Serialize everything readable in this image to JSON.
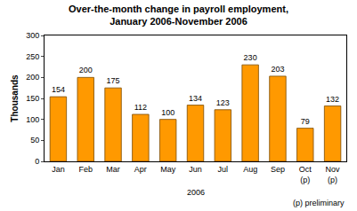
{
  "chart_data": {
    "type": "bar",
    "title": "Over-the-month change in payroll employment,\nJanuary 2006-November 2006",
    "y_label": "Thousands",
    "categories": [
      "Jan",
      "Feb",
      "Mar",
      "Apr",
      "May",
      "Jun",
      "Jul",
      "Aug",
      "Sep",
      "Oct (p)",
      "Nov (p)"
    ],
    "values": [
      154,
      200,
      175,
      112,
      100,
      134,
      123,
      230,
      203,
      79,
      132
    ],
    "color": "#ff9900",
    "ylim": [
      0,
      300
    ],
    "yticks": [
      0,
      50,
      100,
      150,
      200,
      250,
      300
    ],
    "grid": false,
    "data_labels": true,
    "annotations": [
      {
        "text": "2006"
      },
      {
        "text": "(p) preliminary"
      }
    ]
  }
}
